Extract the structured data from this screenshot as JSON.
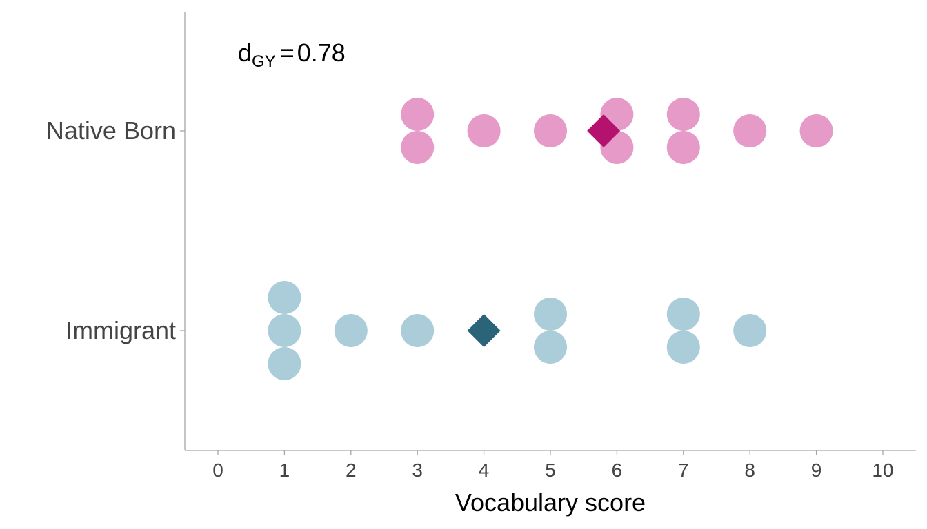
{
  "chart_data": {
    "type": "scatter",
    "subtype": "dot plot",
    "xlabel": "Vocabulary score",
    "ylabel": "",
    "xlim": [
      0,
      10
    ],
    "x_ticks": [
      "0",
      "1",
      "2",
      "3",
      "4",
      "5",
      "6",
      "7",
      "8",
      "9",
      "10"
    ],
    "categories": [
      "Native Born",
      "Immigrant"
    ],
    "annotation": {
      "symbol": "d",
      "subscript": "GY",
      "operator": "=",
      "value": "0.78"
    },
    "grid": false,
    "legend": "none",
    "series": [
      {
        "category": "Native Born",
        "points": [
          3,
          3,
          4,
          5,
          6,
          6,
          7,
          7,
          8,
          9
        ],
        "mean": 5.8,
        "point_color": "#e59ac8",
        "mean_color": "#b5126f"
      },
      {
        "category": "Immigrant",
        "points": [
          1,
          1,
          1,
          2,
          3,
          5,
          5,
          7,
          7,
          8
        ],
        "mean": 4,
        "point_color": "#abcdd9",
        "mean_color": "#2b6379"
      }
    ]
  }
}
